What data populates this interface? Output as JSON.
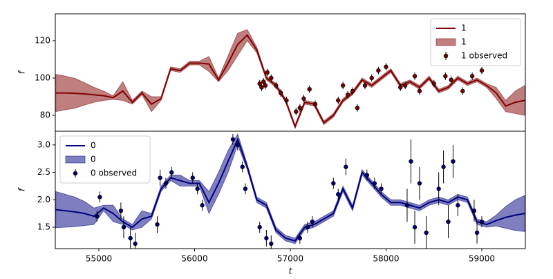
{
  "chart_data": [
    {
      "type": "line",
      "ylabel": "f",
      "xlim": [
        54545,
        59455
      ],
      "ylim": [
        71.5,
        134.4
      ],
      "yticks": [
        80,
        100,
        120
      ],
      "legend": "upper right",
      "x": [
        54550,
        54650,
        54750,
        54850,
        54950,
        55050,
        55150,
        55250,
        55350,
        55450,
        55550,
        55650,
        55750,
        55850,
        55950,
        56050,
        56150,
        56250,
        56350,
        56450,
        56550,
        56650,
        56750,
        56850,
        56950,
        57050,
        57150,
        57250,
        57350,
        57450,
        57550,
        57650,
        57750,
        57850,
        57950,
        58050,
        58150,
        58250,
        58350,
        58450,
        58550,
        58650,
        58750,
        58850,
        58950,
        59050,
        59150,
        59250,
        59350,
        59450
      ],
      "series": [
        {
          "name": "1",
          "kind": "line",
          "color": "#800000",
          "values": [
            92,
            92,
            91.8,
            91.5,
            91,
            90.5,
            89.5,
            93,
            87,
            92,
            86,
            89,
            105,
            104,
            108,
            108,
            107.5,
            99,
            108,
            118,
            123,
            115,
            100,
            96,
            88,
            74,
            87,
            86,
            76,
            80,
            88,
            92,
            99,
            96,
            100,
            104,
            96,
            98,
            95,
            100,
            93,
            95,
            100,
            97,
            99,
            96,
            92,
            85,
            87,
            88
          ]
        },
        {
          "name": "1",
          "kind": "band",
          "color": "#800000",
          "lower": [
            82,
            83,
            83.8,
            85.5,
            87,
            88,
            88.5,
            88,
            86,
            91,
            82,
            88,
            104,
            103,
            107,
            107,
            103.5,
            98,
            104,
            112,
            120,
            113.5,
            99,
            95,
            87,
            73,
            86,
            85,
            75,
            79,
            87,
            91,
            98,
            95,
            99,
            103,
            95,
            97,
            94,
            99,
            92,
            94,
            99,
            96,
            98,
            95,
            89,
            82,
            81,
            80
          ],
          "upper": [
            102,
            101,
            99.8,
            97.5,
            95,
            93,
            90.5,
            98,
            88,
            93,
            90,
            90,
            106,
            105,
            109,
            109,
            111.5,
            100,
            112,
            124,
            126,
            116.5,
            101,
            97,
            89,
            75,
            88,
            87,
            77,
            81,
            89,
            93,
            100,
            97,
            101,
            105,
            97,
            99,
            96,
            101,
            94,
            96,
            101,
            98,
            100,
            97,
            95,
            88,
            93,
            96
          ]
        },
        {
          "name": "1 observed",
          "kind": "points",
          "color": "#800000",
          "x": [
            56680,
            56700,
            56720,
            56740,
            56760,
            56800,
            56850,
            56900,
            56960,
            57060,
            57100,
            57140,
            57200,
            57260,
            57500,
            57550,
            57600,
            57650,
            57700,
            57780,
            57850,
            57920,
            58000,
            58150,
            58200,
            58300,
            58350,
            58500,
            58620,
            58680,
            58800,
            58900,
            59000
          ],
          "values": [
            97,
            95,
            98,
            96,
            103,
            100,
            96,
            92,
            88,
            82,
            84,
            89,
            94,
            86,
            88,
            96,
            91,
            93,
            84,
            96,
            100,
            104,
            106,
            95,
            96,
            101,
            93,
            97,
            101,
            99,
            93,
            101,
            104
          ],
          "errors": [
            2,
            2,
            2,
            2,
            2,
            2,
            2,
            2,
            2,
            2,
            2,
            2,
            2,
            2,
            2,
            2,
            2,
            2,
            2,
            2,
            2,
            2,
            2,
            2,
            2,
            2,
            2,
            2,
            2,
            2,
            2,
            2,
            2
          ]
        }
      ]
    },
    {
      "type": "line",
      "ylabel": "f",
      "xlabel": "t",
      "xlim": [
        54545,
        59455
      ],
      "xticks": [
        55000,
        56000,
        57000,
        58000,
        59000
      ],
      "ylim": [
        1.11,
        3.25
      ],
      "yticks": [
        1.5,
        {
          "value": 2,
          "label": "2.0"
        },
        2.5,
        {
          "value": 3,
          "label": "3.0"
        }
      ],
      "legend": "upper left",
      "x": [
        54550,
        54650,
        54750,
        54850,
        54950,
        55050,
        55150,
        55250,
        55350,
        55450,
        55550,
        55650,
        55750,
        55850,
        55950,
        56050,
        56150,
        56250,
        56350,
        56450,
        56550,
        56650,
        56750,
        56850,
        56950,
        57050,
        57150,
        57250,
        57350,
        57450,
        57550,
        57650,
        57750,
        57850,
        57950,
        58050,
        58150,
        58250,
        58350,
        58450,
        58550,
        58650,
        58750,
        58850,
        58950,
        59050,
        59150,
        59250,
        59350,
        59450
      ],
      "series": [
        {
          "name": "0",
          "kind": "line",
          "color": "#000080",
          "values": [
            1.82,
            1.8,
            1.78,
            1.75,
            1.7,
            1.85,
            1.75,
            1.6,
            1.5,
            1.65,
            1.7,
            2.2,
            2.4,
            2.35,
            2.3,
            2.3,
            1.95,
            2.3,
            2.7,
            3.1,
            2.6,
            2.0,
            1.9,
            1.45,
            1.3,
            1.25,
            1.5,
            1.55,
            1.65,
            1.75,
            2.2,
            1.85,
            2.5,
            2.3,
            2.1,
            1.95,
            1.95,
            1.9,
            1.85,
            1.95,
            2.0,
            1.95,
            2.05,
            2.0,
            1.6,
            1.55,
            1.62,
            1.68,
            1.72,
            1.75
          ]
        },
        {
          "name": "0",
          "kind": "band",
          "color": "#000080",
          "lower": [
            1.49,
            1.5,
            1.51,
            1.53,
            1.55,
            1.8,
            1.6,
            1.55,
            1.45,
            1.5,
            1.65,
            2.15,
            2.35,
            2.25,
            2.25,
            2.25,
            1.75,
            2.1,
            2.5,
            3.0,
            2.55,
            1.95,
            1.85,
            1.4,
            1.25,
            1.2,
            1.45,
            1.5,
            1.6,
            1.7,
            2.15,
            1.8,
            2.45,
            2.25,
            2.05,
            1.9,
            1.9,
            1.85,
            1.8,
            1.9,
            1.95,
            1.9,
            2.0,
            1.95,
            1.55,
            1.5,
            1.52,
            1.48,
            1.44,
            1.42
          ],
          "upper": [
            2.15,
            2.1,
            2.05,
            1.97,
            1.85,
            1.9,
            1.9,
            1.65,
            1.55,
            1.8,
            1.75,
            2.25,
            2.45,
            2.45,
            2.35,
            2.35,
            2.15,
            2.5,
            2.9,
            3.2,
            2.65,
            2.05,
            1.95,
            1.5,
            1.35,
            1.3,
            1.55,
            1.6,
            1.7,
            1.8,
            2.25,
            1.9,
            2.55,
            2.35,
            2.15,
            2.0,
            2.0,
            1.95,
            1.9,
            2.0,
            2.05,
            2.0,
            2.1,
            2.05,
            1.65,
            1.6,
            1.72,
            1.88,
            2.0,
            2.08
          ]
        },
        {
          "name": "0 observed",
          "kind": "points",
          "color": "#000080",
          "x": [
            54980,
            55010,
            55230,
            55260,
            55330,
            55380,
            55610,
            55640,
            55700,
            55760,
            55980,
            56030,
            56080,
            56400,
            56450,
            56500,
            56530,
            56680,
            56750,
            56800,
            57100,
            57180,
            57230,
            57450,
            57500,
            57580,
            57800,
            57880,
            57950,
            58220,
            58260,
            58300,
            58350,
            58420,
            58550,
            58600,
            58650,
            58700,
            58750,
            58920,
            58950,
            59000
          ],
          "values": [
            1.7,
            2.05,
            1.8,
            1.5,
            1.3,
            1.2,
            1.55,
            2.4,
            2.3,
            2.5,
            2.4,
            2.2,
            1.9,
            3.1,
            3.0,
            2.6,
            2.2,
            1.5,
            1.3,
            1.2,
            1.3,
            1.5,
            1.6,
            2.3,
            2.1,
            2.6,
            2.45,
            2.3,
            2.2,
            1.9,
            2.7,
            1.5,
            2.3,
            1.4,
            2.2,
            2.6,
            1.6,
            2.7,
            1.9,
            1.8,
            1.4,
            1.6
          ],
          "errors": [
            0.1,
            0.1,
            0.15,
            0.2,
            0.2,
            0.2,
            0.15,
            0.15,
            0.1,
            0.1,
            0.1,
            0.1,
            0.1,
            0.1,
            0.1,
            0.1,
            0.1,
            0.1,
            0.15,
            0.15,
            0.1,
            0.1,
            0.1,
            0.1,
            0.1,
            0.15,
            0.1,
            0.1,
            0.1,
            0.3,
            0.4,
            0.3,
            0.3,
            0.3,
            0.3,
            0.3,
            0.3,
            0.3,
            0.2,
            0.2,
            0.2,
            0.1
          ]
        }
      ]
    }
  ]
}
